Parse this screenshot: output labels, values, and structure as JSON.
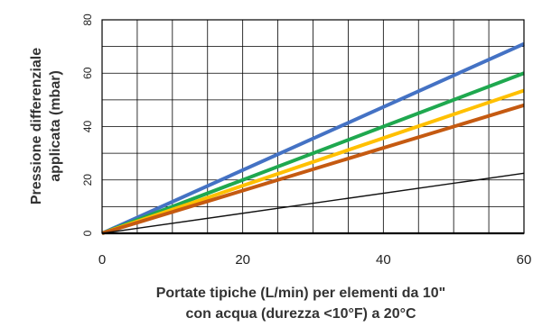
{
  "chart_data": {
    "type": "line",
    "xlabel": [
      "Portate tipiche (L/min) per elementi da 10\"",
      "con acqua (durezza <10°F) a 20°C"
    ],
    "ylabel": [
      "Pressione differenziale",
      "applicata (mbar)"
    ],
    "xlim": [
      0,
      60
    ],
    "ylim": [
      0,
      80
    ],
    "x_ticks": [
      "0",
      "20",
      "40",
      "60"
    ],
    "y_ticks": [
      "0",
      "20",
      "40",
      "60",
      "80"
    ],
    "grid": true,
    "series": [
      {
        "color": "#4472c4",
        "x": [
          0,
          60
        ],
        "y": [
          0,
          71
        ]
      },
      {
        "color": "#1fa84f",
        "x": [
          0,
          60
        ],
        "y": [
          0,
          60
        ]
      },
      {
        "color": "#ffc000",
        "x": [
          0,
          60
        ],
        "y": [
          0,
          53.5
        ]
      },
      {
        "color": "#c55a11",
        "x": [
          0,
          60
        ],
        "y": [
          0,
          48
        ]
      },
      {
        "color": "#111111",
        "x": [
          0,
          60
        ],
        "y": [
          0,
          22.5
        ]
      }
    ]
  }
}
